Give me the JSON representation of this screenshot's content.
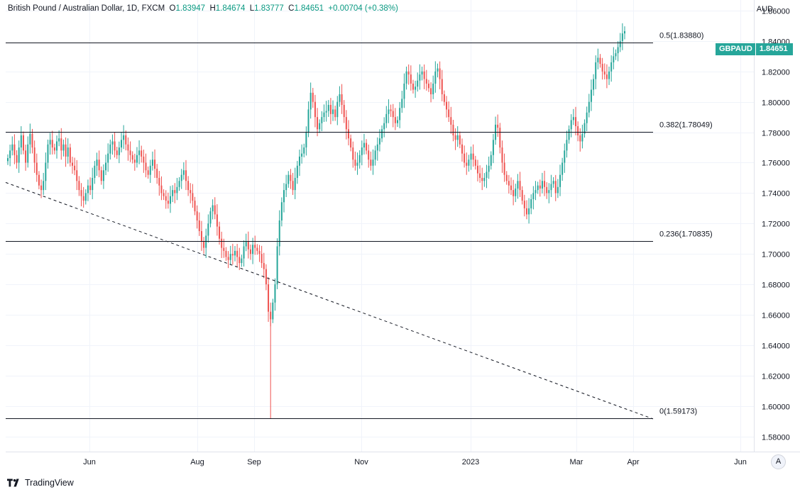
{
  "legend": {
    "name": "British Pound / Australian Dollar, 1D, FXCM",
    "open_label": "O",
    "open": "1.83947",
    "high_label": "H",
    "high": "1.84674",
    "low_label": "L",
    "low": "1.83777",
    "close_label": "C",
    "close": "1.84651",
    "change": "+0.00704 (+0.38%)"
  },
  "price_tag": {
    "symbol": "GBPAUD",
    "value": "1.84651"
  },
  "currency": "AUD",
  "auto_button": "A",
  "footer": {
    "brand": "TradingView"
  },
  "colors": {
    "up": "#26a69a",
    "down": "#ef5350",
    "grid": "#f0f3fa",
    "line": "#131722"
  },
  "chart_data": {
    "type": "candlestick",
    "symbol": "GBPAUD",
    "ylim": [
      1.57,
      1.867
    ],
    "y_ticks": [
      "1.86000",
      "1.84000",
      "1.82000",
      "1.80000",
      "1.78000",
      "1.76000",
      "1.74000",
      "1.72000",
      "1.70000",
      "1.68000",
      "1.66000",
      "1.64000",
      "1.62000",
      "1.60000",
      "1.58000"
    ],
    "x_ticks": [
      "Jun",
      "Aug",
      "Sep",
      "Nov",
      "2023",
      "Mar",
      "Apr",
      "Jun"
    ],
    "fib_levels": [
      {
        "label": "0.5(1.83880)",
        "value": 1.8388
      },
      {
        "label": "0.382(1.78049)",
        "value": 1.78049
      },
      {
        "label": "0.236(1.70835)",
        "value": 1.70835
      },
      {
        "label": "0(1.59173)",
        "value": 1.59173
      }
    ],
    "trendline": {
      "style": "dashed",
      "from": 1.747,
      "to": 1.5915
    },
    "closes": [
      1.763,
      1.768,
      1.772,
      1.765,
      1.76,
      1.77,
      1.778,
      1.768,
      1.76,
      1.772,
      1.779,
      1.77,
      1.76,
      1.752,
      1.745,
      1.742,
      1.748,
      1.76,
      1.772,
      1.775,
      1.77,
      1.768,
      1.774,
      1.776,
      1.768,
      1.772,
      1.764,
      1.77,
      1.76,
      1.758,
      1.755,
      1.748,
      1.742,
      1.738,
      1.735,
      1.74,
      1.745,
      1.742,
      1.75,
      1.758,
      1.762,
      1.755,
      1.748,
      1.755,
      1.76,
      1.766,
      1.772,
      1.774,
      1.768,
      1.765,
      1.77,
      1.775,
      1.778,
      1.772,
      1.768,
      1.765,
      1.762,
      1.76,
      1.765,
      1.768,
      1.764,
      1.76,
      1.755,
      1.752,
      1.758,
      1.762,
      1.756,
      1.75,
      1.745,
      1.74,
      1.738,
      1.735,
      1.733,
      1.738,
      1.742,
      1.74,
      1.744,
      1.748,
      1.752,
      1.755,
      1.748,
      1.742,
      1.74,
      1.735,
      1.728,
      1.722,
      1.715,
      1.708,
      1.704,
      1.712,
      1.72,
      1.728,
      1.732,
      1.726,
      1.718,
      1.71,
      1.704,
      1.702,
      1.698,
      1.696,
      1.7,
      1.699,
      1.702,
      1.698,
      1.694,
      1.697,
      1.705,
      1.708,
      1.703,
      1.7,
      1.706,
      1.704,
      1.702,
      1.7,
      1.694,
      1.69,
      1.68,
      1.662,
      1.657,
      1.668,
      1.68,
      1.705,
      1.722,
      1.734,
      1.742,
      1.746,
      1.752,
      1.748,
      1.742,
      1.75,
      1.758,
      1.764,
      1.766,
      1.77,
      1.78,
      1.795,
      1.806,
      1.8,
      1.79,
      1.782,
      1.786,
      1.79,
      1.793,
      1.794,
      1.798,
      1.792,
      1.795,
      1.79,
      1.8,
      1.805,
      1.798,
      1.79,
      1.782,
      1.776,
      1.77,
      1.762,
      1.758,
      1.76,
      1.765,
      1.77,
      1.773,
      1.768,
      1.762,
      1.758,
      1.762,
      1.768,
      1.772,
      1.776,
      1.782,
      1.786,
      1.792,
      1.795,
      1.794,
      1.79,
      1.786,
      1.788,
      1.796,
      1.802,
      1.812,
      1.82,
      1.818,
      1.812,
      1.808,
      1.81,
      1.814,
      1.818,
      1.82,
      1.815,
      1.812,
      1.809,
      1.805,
      1.812,
      1.82,
      1.822,
      1.815,
      1.805,
      1.8,
      1.795,
      1.79,
      1.785,
      1.778,
      1.775,
      1.778,
      1.772,
      1.766,
      1.76,
      1.758,
      1.762,
      1.766,
      1.762,
      1.758,
      1.753,
      1.75,
      1.748,
      1.75,
      1.754,
      1.758,
      1.765,
      1.775,
      1.785,
      1.783,
      1.77,
      1.76,
      1.752,
      1.748,
      1.745,
      1.742,
      1.738,
      1.743,
      1.748,
      1.742,
      1.735,
      1.73,
      1.726,
      1.73,
      1.736,
      1.74,
      1.742,
      1.745,
      1.743,
      1.748,
      1.744,
      1.74,
      1.742,
      1.746,
      1.748,
      1.74,
      1.744,
      1.752,
      1.76,
      1.768,
      1.775,
      1.782,
      1.788,
      1.79,
      1.784,
      1.778,
      1.774,
      1.779,
      1.786,
      1.793,
      1.8,
      1.808,
      1.815,
      1.826,
      1.829,
      1.825,
      1.82,
      1.818,
      1.815,
      1.82,
      1.826,
      1.83,
      1.832,
      1.836,
      1.84,
      1.845,
      1.84651
    ]
  }
}
